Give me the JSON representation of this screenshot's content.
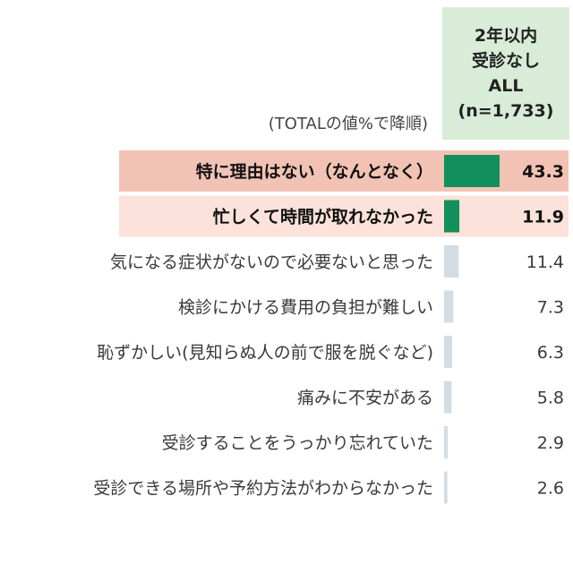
{
  "header": {
    "column_lines": [
      "2年以内",
      "受診なし",
      "ALL",
      "(n=1,733)"
    ],
    "sort_note": "(TOTALの値%で降順)"
  },
  "chart_data": {
    "type": "bar",
    "orientation": "horizontal",
    "series": [
      {
        "values": [
          43.3,
          11.9,
          11.4,
          7.3,
          6.3,
          5.8,
          2.9,
          2.6
        ]
      }
    ],
    "categories": [
      "特に理由はない（なんとなく）",
      "忙しくて時間が取れなかった",
      "気になる症状がないので必要ないと思った",
      "検診にかける費用の負担が難しい",
      "恥ずかしい(見知らぬ人の前で服を脱ぐなど)",
      "痛みに不安がある",
      "受診することをうっかり忘れていた",
      "受診できる場所や予約方法がわからなかった"
    ],
    "value_labels": [
      "43.3",
      "11.9",
      "11.4",
      "7.3",
      "6.3",
      "5.8",
      "2.9",
      "2.6"
    ],
    "highlighted": [
      true,
      true,
      false,
      false,
      false,
      false,
      false,
      false
    ],
    "colors": {
      "header_bg": "#d8ecd8",
      "highlight_row_1": "#f2c3b5",
      "highlight_row_2": "#fbe2da",
      "highlight_bar": "#118f5c",
      "normal_bar": "#d3dde3"
    }
  }
}
